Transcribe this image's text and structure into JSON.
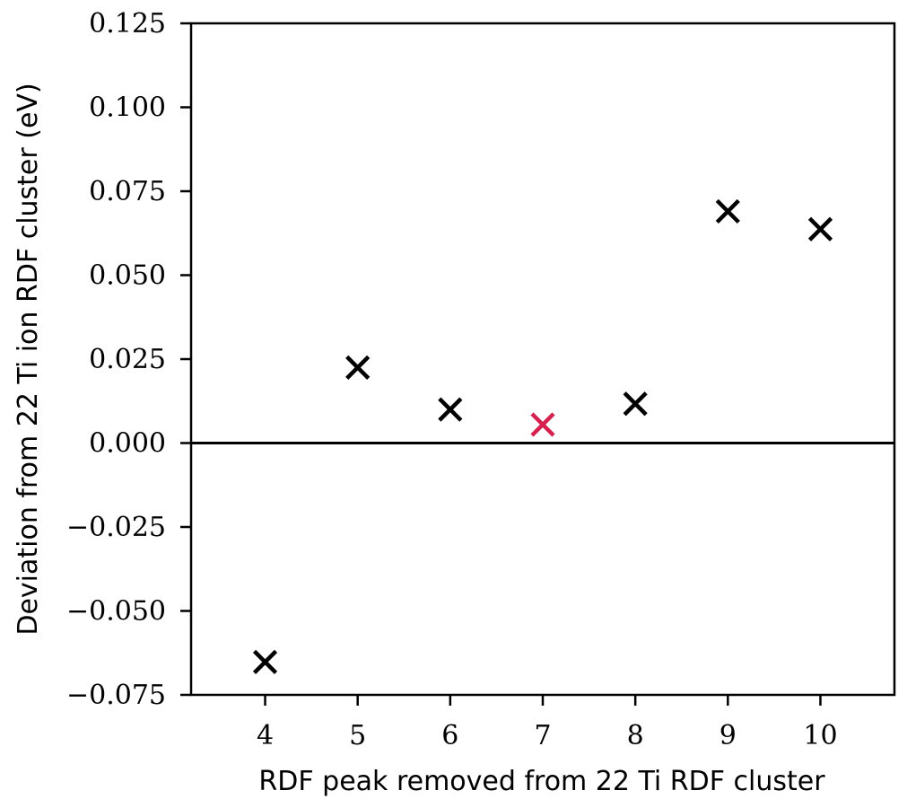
{
  "chart_data": {
    "type": "scatter",
    "title": "",
    "xlabel": "RDF peak removed from 22 Ti RDF cluster",
    "ylabel": "Deviation from 22 Ti ion RDF cluster (eV)",
    "xlim": [
      3.2,
      10.8
    ],
    "ylim": [
      -0.075,
      0.125
    ],
    "x_ticks": [
      4,
      5,
      6,
      7,
      8,
      9,
      10
    ],
    "x_tick_labels": [
      "4",
      "5",
      "6",
      "7",
      "8",
      "9",
      "10"
    ],
    "y_ticks": [
      -0.075,
      -0.05,
      -0.025,
      0.0,
      0.025,
      0.05,
      0.075,
      0.1,
      0.125
    ],
    "y_tick_labels": [
      "−0.075",
      "−0.050",
      "−0.025",
      "0.000",
      "0.025",
      "0.050",
      "0.075",
      "0.100",
      "0.125"
    ],
    "reference_line_y": 0.0,
    "grid": false,
    "marker": "x",
    "points": [
      {
        "x": 4,
        "y": -0.0652,
        "color": "#000000"
      },
      {
        "x": 5,
        "y": 0.0225,
        "color": "#000000"
      },
      {
        "x": 6,
        "y": 0.01,
        "color": "#000000"
      },
      {
        "x": 7,
        "y": 0.0055,
        "color": "#d6204e"
      },
      {
        "x": 8,
        "y": 0.0117,
        "color": "#000000"
      },
      {
        "x": 9,
        "y": 0.069,
        "color": "#000000"
      },
      {
        "x": 10,
        "y": 0.0637,
        "color": "#000000"
      }
    ]
  }
}
